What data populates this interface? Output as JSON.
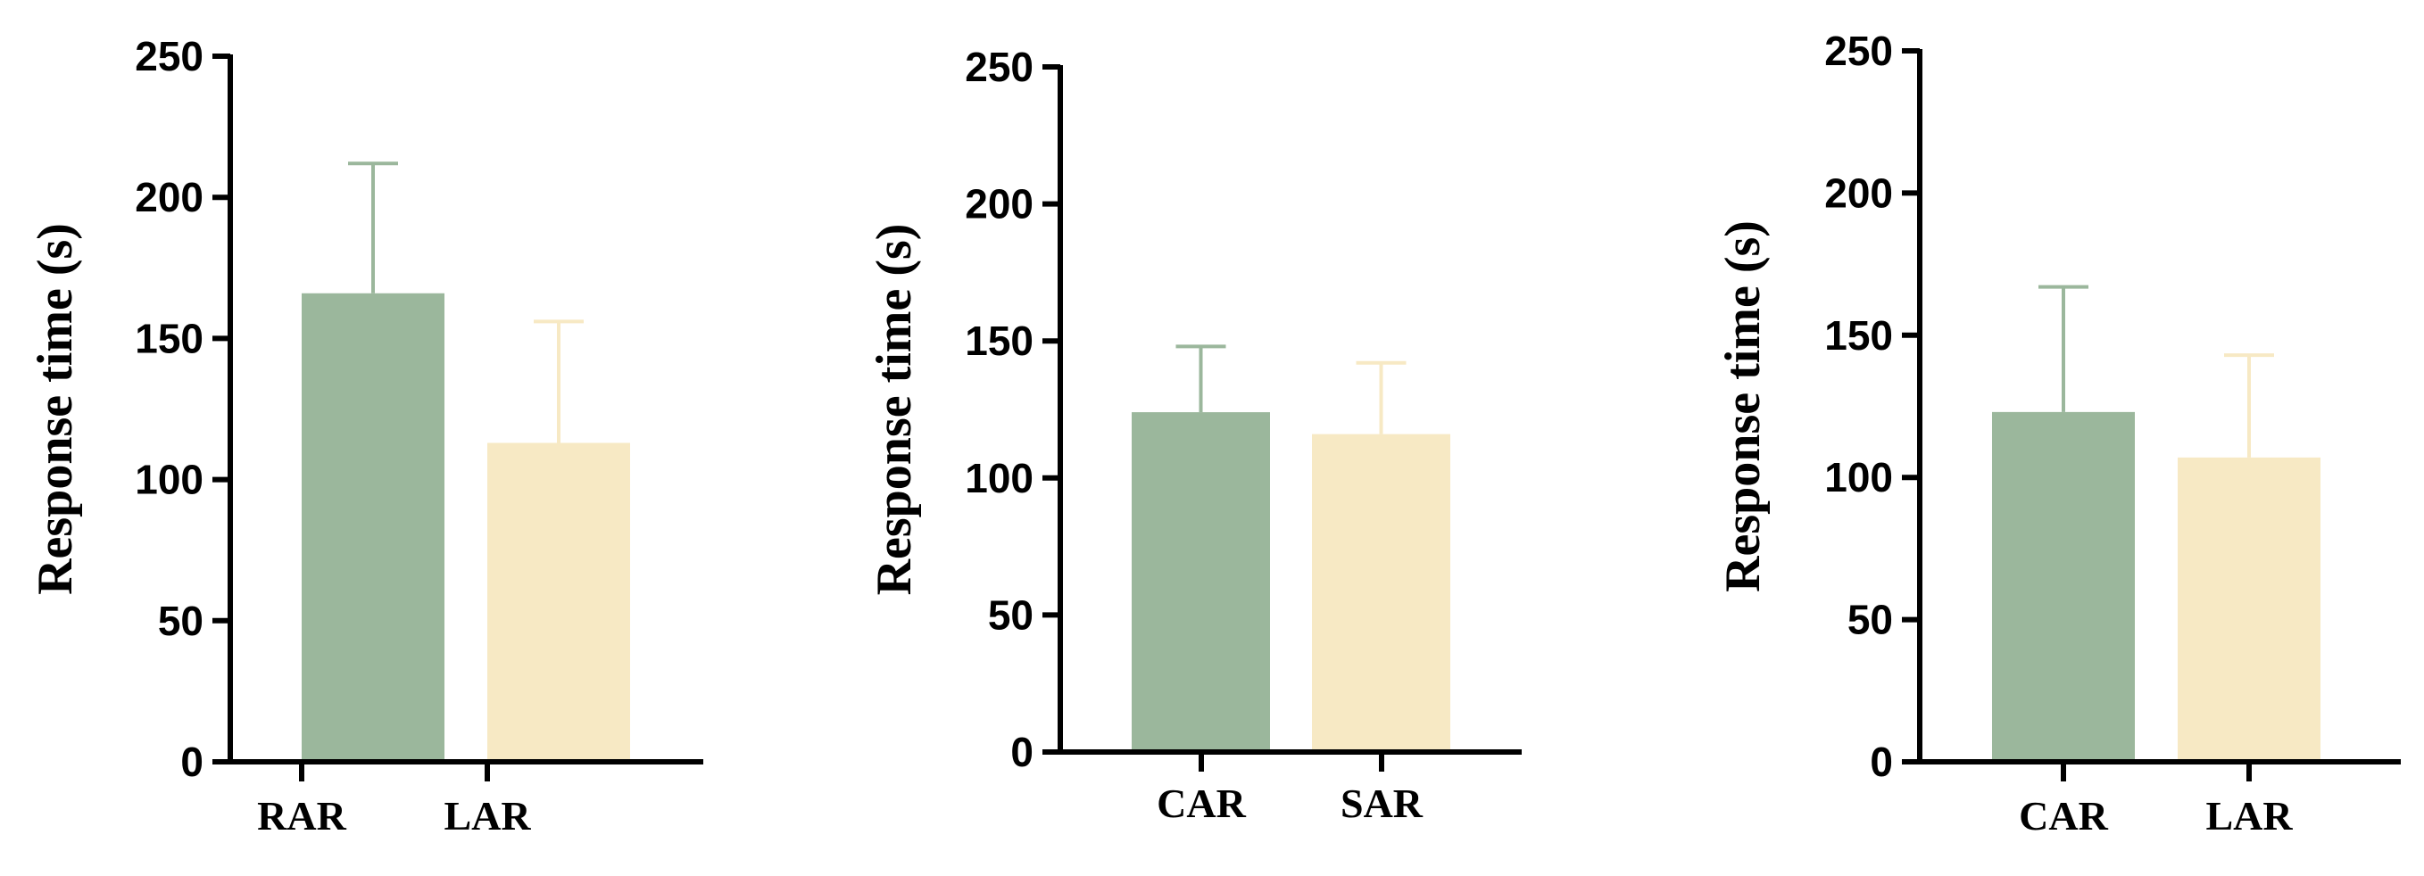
{
  "colors": {
    "green": "#9bb79c",
    "cream": "#f7e9c4",
    "axis": "#000000"
  },
  "chart_data": [
    {
      "type": "bar",
      "categories": [
        "RAR",
        "LAR"
      ],
      "values": [
        166,
        113
      ],
      "error_upper": [
        212,
        156
      ],
      "colors": [
        "#9bb79c",
        "#f7e9c4"
      ],
      "ylabel": "Response time (s)",
      "xlabel": "",
      "ylim": [
        0,
        250
      ],
      "yticks": [
        "0",
        "50",
        "100",
        "150",
        "200",
        "250"
      ],
      "grid": false
    },
    {
      "type": "bar",
      "categories": [
        "CAR",
        "SAR"
      ],
      "values": [
        124,
        116
      ],
      "error_upper": [
        148,
        142
      ],
      "colors": [
        "#9bb79c",
        "#f7e9c4"
      ],
      "ylabel": "Response time (s)",
      "xlabel": "",
      "ylim": [
        0,
        250
      ],
      "yticks": [
        "0",
        "50",
        "100",
        "150",
        "200",
        "250"
      ],
      "grid": false
    },
    {
      "type": "bar",
      "categories": [
        "CAR",
        "LAR"
      ],
      "values": [
        123,
        107
      ],
      "error_upper": [
        167,
        143
      ],
      "colors": [
        "#9bb79c",
        "#f7e9c4"
      ],
      "ylabel": "Response time (s)",
      "xlabel": "",
      "ylim": [
        0,
        250
      ],
      "yticks": [
        "0",
        "50",
        "100",
        "150",
        "200",
        "250"
      ],
      "grid": false
    }
  ]
}
